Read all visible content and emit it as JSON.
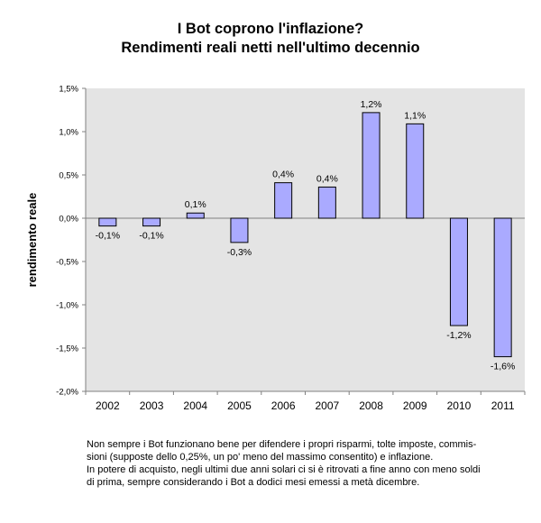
{
  "chart_data": {
    "type": "bar",
    "title": "I Bot coprono l'inflazione?",
    "subtitle": "Rendimenti reali netti nell'ultimo decennio",
    "xlabel": "",
    "ylabel": "rendimento reale",
    "ylim": [
      -2.0,
      1.5
    ],
    "yticks": [
      "1,5%",
      "1,0%",
      "0,5%",
      "0,0%",
      "-0,5%",
      "-1,0%",
      "-1,5%",
      "-2,0%"
    ],
    "ytick_values": [
      1.5,
      1.0,
      0.5,
      0.0,
      -0.5,
      -1.0,
      -1.5,
      -2.0
    ],
    "grid": false,
    "legend": "none",
    "categories": [
      "2002",
      "2003",
      "2004",
      "2005",
      "2006",
      "2007",
      "2008",
      "2009",
      "2010",
      "2011"
    ],
    "values": [
      -0.09,
      -0.09,
      0.06,
      -0.28,
      0.41,
      0.36,
      1.22,
      1.09,
      -1.24,
      -1.6
    ],
    "data_labels": [
      "-0,1%",
      "-0,1%",
      "0,1%",
      "-0,3%",
      "0,4%",
      "0,4%",
      "1,2%",
      "1,1%",
      "-1,2%",
      "-1,6%"
    ],
    "colors": {
      "bar_fill": "#aaaaff",
      "bar_stroke": "#000000",
      "plot_background": "#e4e4e4",
      "axis": "#808080"
    }
  },
  "caption": {
    "line1": "Non sempre i Bot funzionano bene per difendere i propri risparmi, tolte imposte, commis-",
    "line2": "sioni (supposte dello 0,25%, un po' meno del massimo consentito) e inflazione.",
    "line3": "In potere di acquisto, negli ultimi due anni solari ci si è ritrovati a fine anno con meno soldi",
    "line4": "di prima, sempre considerando i Bot a dodici mesi emessi a metà dicembre."
  }
}
